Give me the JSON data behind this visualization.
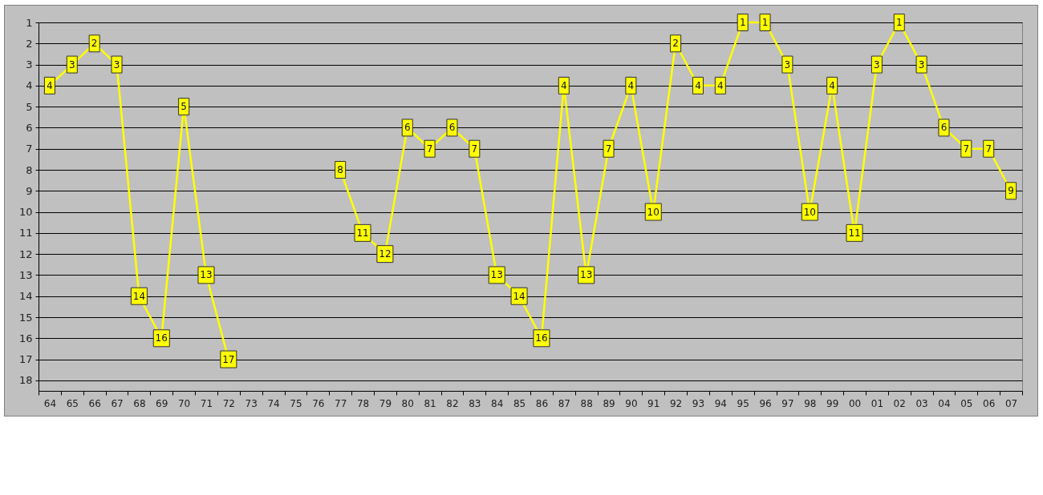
{
  "chart_data": {
    "type": "line",
    "categories": [
      "64",
      "65",
      "66",
      "67",
      "68",
      "69",
      "70",
      "71",
      "72",
      "73",
      "74",
      "75",
      "76",
      "77",
      "78",
      "79",
      "80",
      "81",
      "82",
      "83",
      "84",
      "85",
      "86",
      "87",
      "88",
      "89",
      "90",
      "91",
      "92",
      "93",
      "94",
      "95",
      "96",
      "97",
      "98",
      "99",
      "00",
      "01",
      "02",
      "03",
      "04",
      "05",
      "06",
      "07"
    ],
    "series": [
      {
        "color": "#ffff00",
        "values": [
          4,
          3,
          2,
          3,
          14,
          16,
          5,
          13,
          17,
          null,
          null,
          null,
          null,
          8,
          11,
          12,
          6,
          7,
          6,
          7,
          13,
          14,
          16,
          4,
          13,
          7,
          4,
          10,
          2,
          4,
          4,
          1,
          1,
          3,
          10,
          4,
          11,
          3,
          1,
          3,
          6,
          7,
          7,
          9
        ]
      }
    ],
    "ylim": [
      18.5,
      1
    ],
    "yticks": [
      1,
      2,
      3,
      4,
      5,
      6,
      7,
      8,
      9,
      10,
      11,
      12,
      13,
      14,
      15,
      16,
      17,
      18
    ],
    "grid": "y",
    "marker": "square",
    "data_labels": true
  }
}
